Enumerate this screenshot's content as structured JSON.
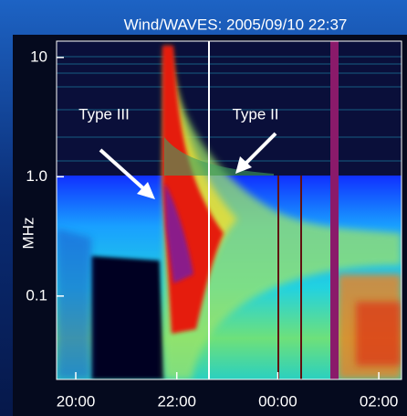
{
  "chart_data": {
    "type": "spectrogram",
    "title": "Wind/WAVES: 2005/09/10 22:37",
    "y_label": "MHz",
    "y_scale": "log",
    "ylim": [
      0.02,
      13.7
    ],
    "yticks": [
      {
        "value": 0.1,
        "label": "0.1"
      },
      {
        "value": 1,
        "label": "1.0"
      },
      10
    ],
    "xlim": [
      19.62,
      26.45
    ],
    "xticks": [
      {
        "value": 20,
        "label": "20:00"
      },
      {
        "value": 22,
        "label": "22:00"
      },
      {
        "value": 24,
        "label": "00:00"
      },
      {
        "value": 26,
        "label": "02:00"
      }
    ],
    "annotations": [
      "Type III",
      "Type II"
    ]
  }
}
